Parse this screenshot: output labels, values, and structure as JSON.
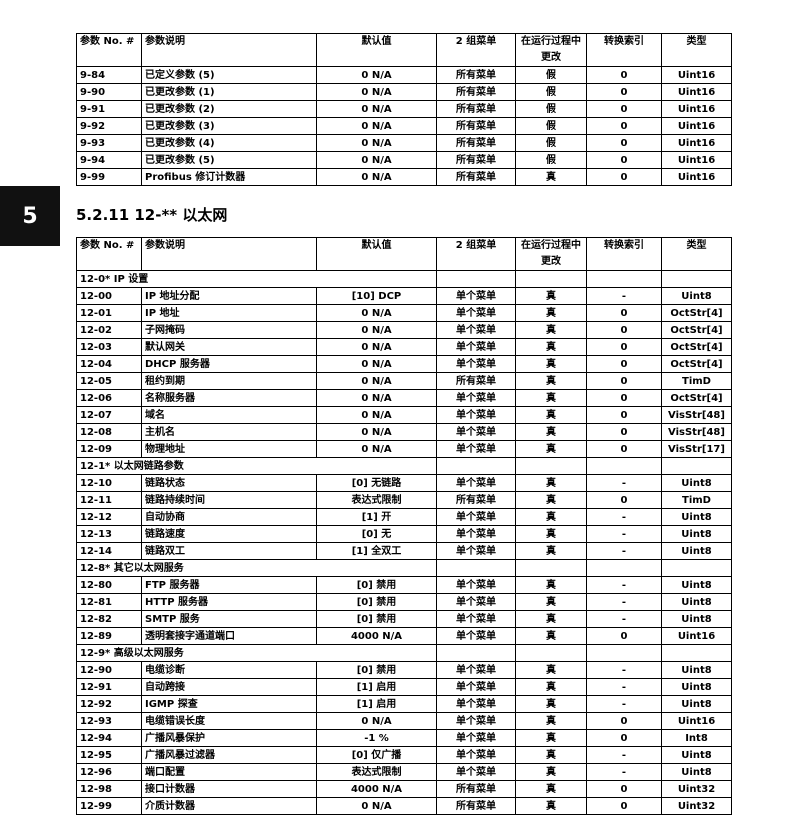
{
  "chapter_tab": "5",
  "headers": {
    "no": "参数 No. #",
    "desc": "参数说明",
    "default": "默认值",
    "menu": "2 组菜单",
    "change": "在运行过程中更改",
    "conv": "转换索引",
    "type": "类型"
  },
  "table1": {
    "rows": [
      [
        "9-84",
        "已定义参数 (5)",
        "0 N/A",
        "所有菜单",
        "假",
        "0",
        "Uint16"
      ],
      [
        "9-90",
        "已更改参数 (1)",
        "0 N/A",
        "所有菜单",
        "假",
        "0",
        "Uint16"
      ],
      [
        "9-91",
        "已更改参数 (2)",
        "0 N/A",
        "所有菜单",
        "假",
        "0",
        "Uint16"
      ],
      [
        "9-92",
        "已更改参数 (3)",
        "0 N/A",
        "所有菜单",
        "假",
        "0",
        "Uint16"
      ],
      [
        "9-93",
        "已更改参数 (4)",
        "0 N/A",
        "所有菜单",
        "假",
        "0",
        "Uint16"
      ],
      [
        "9-94",
        "已更改参数 (5)",
        "0 N/A",
        "所有菜单",
        "假",
        "0",
        "Uint16"
      ],
      [
        "9-99",
        "Profibus 修订计数器",
        "0 N/A",
        "所有菜单",
        "真",
        "0",
        "Uint16"
      ]
    ]
  },
  "section_title": "5.2.11 12-** 以太网",
  "table2": {
    "rows": [
      [
        "12-0* IP 设置"
      ],
      [
        "12-00",
        "IP 地址分配",
        "[10] DCP",
        "单个菜单",
        "真",
        "-",
        "Uint8"
      ],
      [
        "12-01",
        "IP 地址",
        "0 N/A",
        "单个菜单",
        "真",
        "0",
        "OctStr[4]"
      ],
      [
        "12-02",
        "子网掩码",
        "0 N/A",
        "单个菜单",
        "真",
        "0",
        "OctStr[4]"
      ],
      [
        "12-03",
        "默认网关",
        "0 N/A",
        "单个菜单",
        "真",
        "0",
        "OctStr[4]"
      ],
      [
        "12-04",
        "DHCP 服务器",
        "0 N/A",
        "单个菜单",
        "真",
        "0",
        "OctStr[4]"
      ],
      [
        "12-05",
        "租约到期",
        "0 N/A",
        "所有菜单",
        "真",
        "0",
        "TimD"
      ],
      [
        "12-06",
        "名称服务器",
        "0 N/A",
        "单个菜单",
        "真",
        "0",
        "OctStr[4]"
      ],
      [
        "12-07",
        "域名",
        "0 N/A",
        "单个菜单",
        "真",
        "0",
        "VisStr[48]"
      ],
      [
        "12-08",
        "主机名",
        "0 N/A",
        "单个菜单",
        "真",
        "0",
        "VisStr[48]"
      ],
      [
        "12-09",
        "物理地址",
        "0 N/A",
        "单个菜单",
        "真",
        "0",
        "VisStr[17]"
      ],
      [
        "12-1* 以太网链路参数"
      ],
      [
        "12-10",
        "链路状态",
        "[0] 无链路",
        "单个菜单",
        "真",
        "-",
        "Uint8"
      ],
      [
        "12-11",
        "链路持续时间",
        "表达式限制",
        "所有菜单",
        "真",
        "0",
        "TimD"
      ],
      [
        "12-12",
        "自动协商",
        "[1] 开",
        "单个菜单",
        "真",
        "-",
        "Uint8"
      ],
      [
        "12-13",
        "链路速度",
        "[0] 无",
        "单个菜单",
        "真",
        "-",
        "Uint8"
      ],
      [
        "12-14",
        "链路双工",
        "[1] 全双工",
        "单个菜单",
        "真",
        "-",
        "Uint8"
      ],
      [
        "12-8* 其它以太网服务"
      ],
      [
        "12-80",
        "FTP 服务器",
        "[0] 禁用",
        "单个菜单",
        "真",
        "-",
        "Uint8"
      ],
      [
        "12-81",
        "HTTP 服务器",
        "[0] 禁用",
        "单个菜单",
        "真",
        "-",
        "Uint8"
      ],
      [
        "12-82",
        "SMTP 服务",
        "[0] 禁用",
        "单个菜单",
        "真",
        "-",
        "Uint8"
      ],
      [
        "12-89",
        "透明套接字通道端口",
        "4000 N/A",
        "单个菜单",
        "真",
        "0",
        "Uint16"
      ],
      [
        "12-9* 高级以太网服务"
      ],
      [
        "12-90",
        "电缆诊断",
        "[0] 禁用",
        "单个菜单",
        "真",
        "-",
        "Uint8"
      ],
      [
        "12-91",
        "自动跨接",
        "[1] 启用",
        "单个菜单",
        "真",
        "-",
        "Uint8"
      ],
      [
        "12-92",
        "IGMP 探查",
        "[1] 启用",
        "单个菜单",
        "真",
        "-",
        "Uint8"
      ],
      [
        "12-93",
        "电缆错误长度",
        "0 N/A",
        "单个菜单",
        "真",
        "0",
        "Uint16"
      ],
      [
        "12-94",
        "广播风暴保护",
        "-1 %",
        "单个菜单",
        "真",
        "0",
        "Int8"
      ],
      [
        "12-95",
        "广播风暴过滤器",
        "[0] 仅广播",
        "单个菜单",
        "真",
        "-",
        "Uint8"
      ],
      [
        "12-96",
        "端口配置",
        "表达式限制",
        "单个菜单",
        "真",
        "-",
        "Uint8"
      ],
      [
        "12-98",
        "接口计数器",
        "4000 N/A",
        "所有菜单",
        "真",
        "0",
        "Uint32"
      ],
      [
        "12-99",
        "介质计数器",
        "0 N/A",
        "所有菜单",
        "真",
        "0",
        "Uint32"
      ]
    ]
  }
}
